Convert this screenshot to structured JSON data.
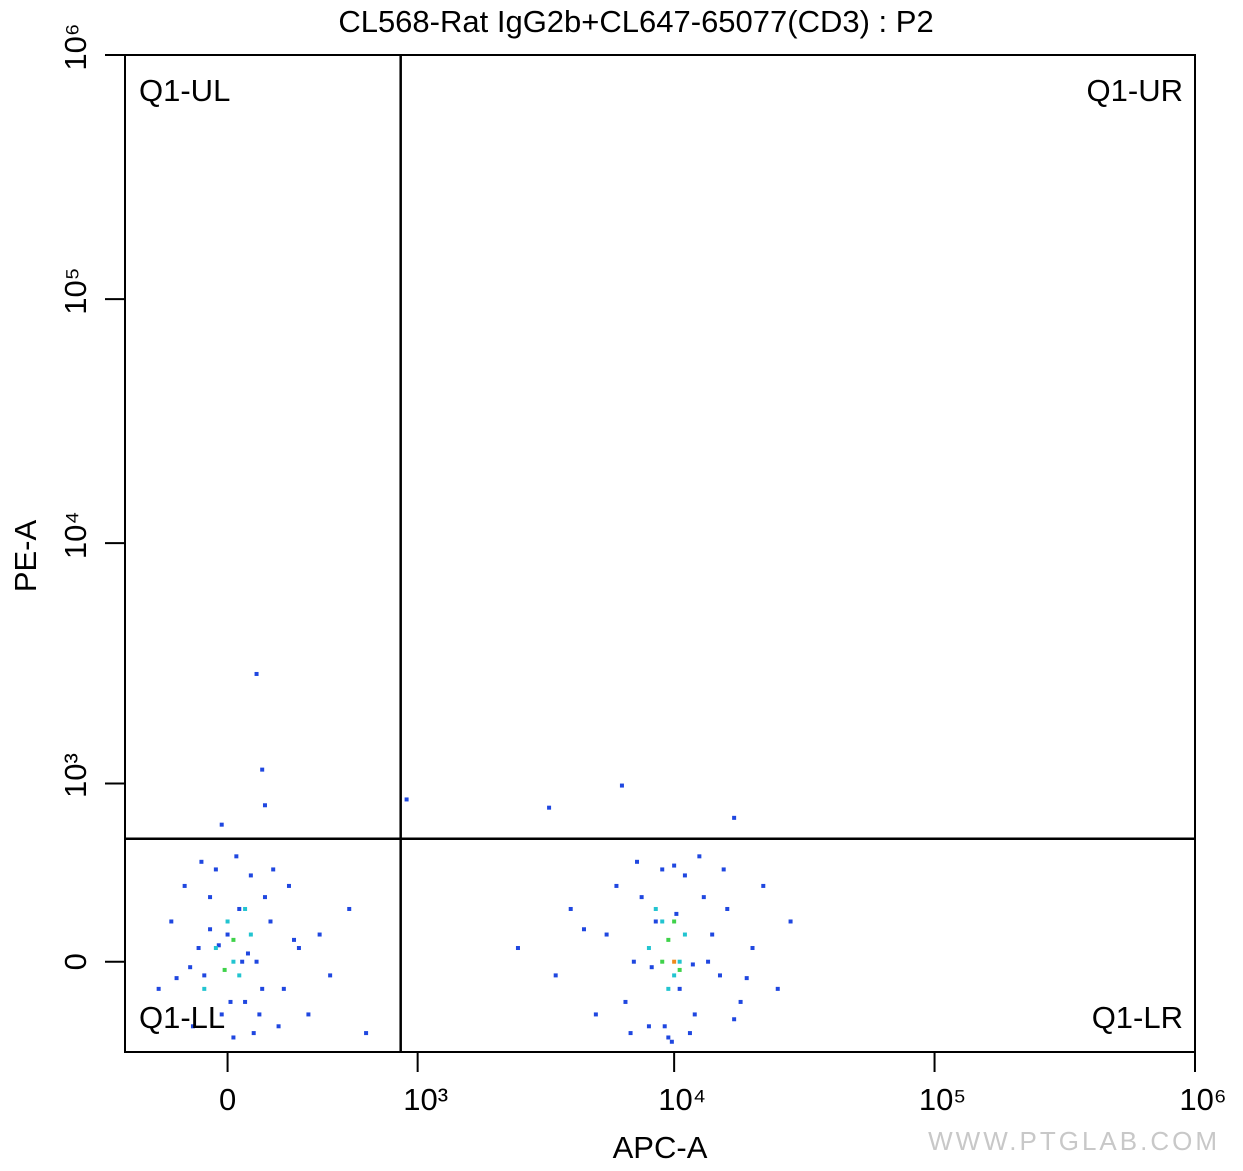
{
  "chart_data": {
    "type": "scatter",
    "title": "CL568-Rat IgG2b+CL647-65077(CD3) : P2",
    "x_label": "APC-A",
    "y_label": "PE-A",
    "scale": "biexponential",
    "xlim": [
      -400,
      1000000
    ],
    "ylim": [
      -370,
      1000000
    ],
    "xticks": [
      0,
      {
        "value": 1000,
        "label": "10³"
      },
      {
        "value": 10000,
        "label": "10⁴"
      },
      {
        "value": 100000,
        "label": "10⁵"
      },
      {
        "value": 1000000,
        "label": "10⁶"
      }
    ],
    "yticks": [
      0,
      {
        "value": 1000,
        "label": "10³"
      },
      {
        "value": 10000,
        "label": "10⁴"
      },
      {
        "value": 100000,
        "label": "10⁵"
      },
      {
        "value": 1000000,
        "label": "10⁶"
      }
    ],
    "gates": {
      "x": 850,
      "y": 555
    },
    "quadrants": {
      "UL": "Q1-UL",
      "UR": "Q1-UR",
      "LL": "Q1-LL",
      "LR": "Q1-LR"
    },
    "watermark": "WWW.PTGLAB.COM",
    "series": [
      {
        "color": "#1f47e0",
        "x": [
          -250,
          -200,
          -150,
          -120,
          -100,
          -80,
          -60,
          -40,
          -20,
          0,
          20,
          40,
          60,
          80,
          100,
          120,
          150,
          180,
          220,
          260,
          300,
          350,
          400,
          500,
          600,
          -180,
          -90,
          30,
          90,
          160,
          240,
          -130,
          10,
          70,
          130,
          200,
          -60,
          50,
          110,
          -30
        ],
        "y": [
          -100,
          150,
          300,
          -250,
          50,
          -50,
          250,
          380,
          -200,
          100,
          -300,
          200,
          -150,
          350,
          0,
          -100,
          150,
          -250,
          300,
          50,
          -200,
          100,
          -50,
          200,
          -280,
          -60,
          420,
          450,
          -280,
          380,
          80,
          -20,
          -150,
          30,
          250,
          -100,
          120,
          0,
          -200,
          60
        ]
      },
      {
        "color": "#1f47e0",
        "x": [
          2500,
          3500,
          4000,
          5000,
          5500,
          6000,
          6500,
          7000,
          7500,
          8000,
          8500,
          9000,
          9500,
          10000,
          10500,
          11000,
          12000,
          13000,
          14000,
          15000,
          16000,
          18000,
          20000,
          22000,
          25000,
          28000,
          6800,
          7200,
          8200,
          9200,
          11500,
          12500,
          13500,
          9800,
          10200,
          11800,
          15500,
          17000,
          4500,
          19000
        ],
        "y": [
          50,
          -50,
          200,
          -200,
          100,
          300,
          -150,
          0,
          250,
          -250,
          150,
          380,
          -300,
          400,
          -100,
          350,
          -200,
          250,
          100,
          -50,
          200,
          -150,
          50,
          300,
          -100,
          150,
          -280,
          420,
          -20,
          -250,
          -280,
          450,
          0,
          -320,
          180,
          -10,
          380,
          -220,
          120,
          -60
        ]
      },
      {
        "color": "#1f47e0",
        "x": [
          100,
          120,
          130,
          -20,
          900,
          3300,
          6300,
          17000
        ],
        "y": [
          2900,
          1150,
          800,
          650,
          850,
          780,
          980,
          700
        ]
      },
      {
        "color": "#22c4d0",
        "x": [
          -40,
          0,
          40,
          80,
          -80,
          20,
          60,
          8000,
          9000,
          10000,
          11000,
          9500,
          10500,
          8500
        ],
        "y": [
          50,
          150,
          -50,
          100,
          -100,
          0,
          200,
          50,
          150,
          -50,
          100,
          -100,
          0,
          200
        ]
      },
      {
        "color": "#3fd24a",
        "x": [
          20,
          -10,
          9500,
          10500,
          10000,
          9000
        ],
        "y": [
          80,
          -30,
          80,
          -30,
          150,
          0
        ]
      },
      {
        "color": "#f08a1c",
        "x": [
          10000
        ],
        "y": [
          0
        ]
      }
    ]
  }
}
